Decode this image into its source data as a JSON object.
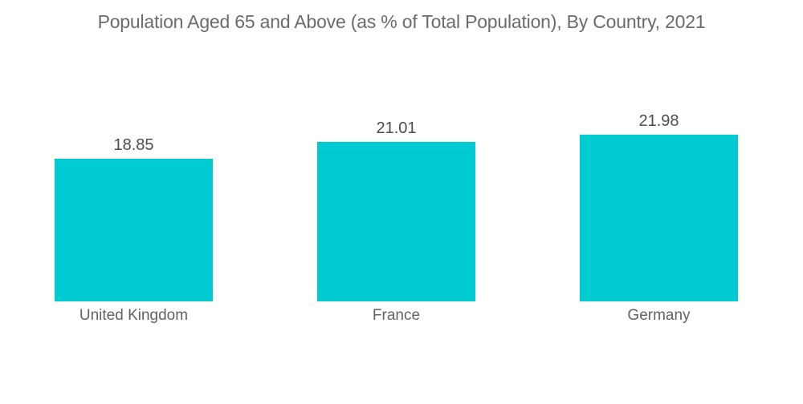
{
  "title": "Population Aged 65 and Above (as % of Total Population), By Country, 2021",
  "colors": {
    "background": "#FFFFFF",
    "bar": "#00CBD2",
    "title_text": "#6B6B6B",
    "value_text": "#4D4D4D",
    "category_text": "#636363"
  },
  "chart_data": {
    "type": "bar",
    "title": "Population Aged 65 and Above (as % of Total Population), By Country, 2021",
    "categories": [
      "United Kingdom",
      "France",
      "Germany"
    ],
    "values": [
      18.85,
      21.01,
      21.98
    ],
    "value_labels": [
      "18.85",
      "21.01",
      "21.98"
    ],
    "xlabel": "",
    "ylabel": "",
    "ylim": [
      0,
      22
    ],
    "grid": false,
    "legend": false,
    "axes_visible": false,
    "bar_color": "#00CBD2"
  }
}
